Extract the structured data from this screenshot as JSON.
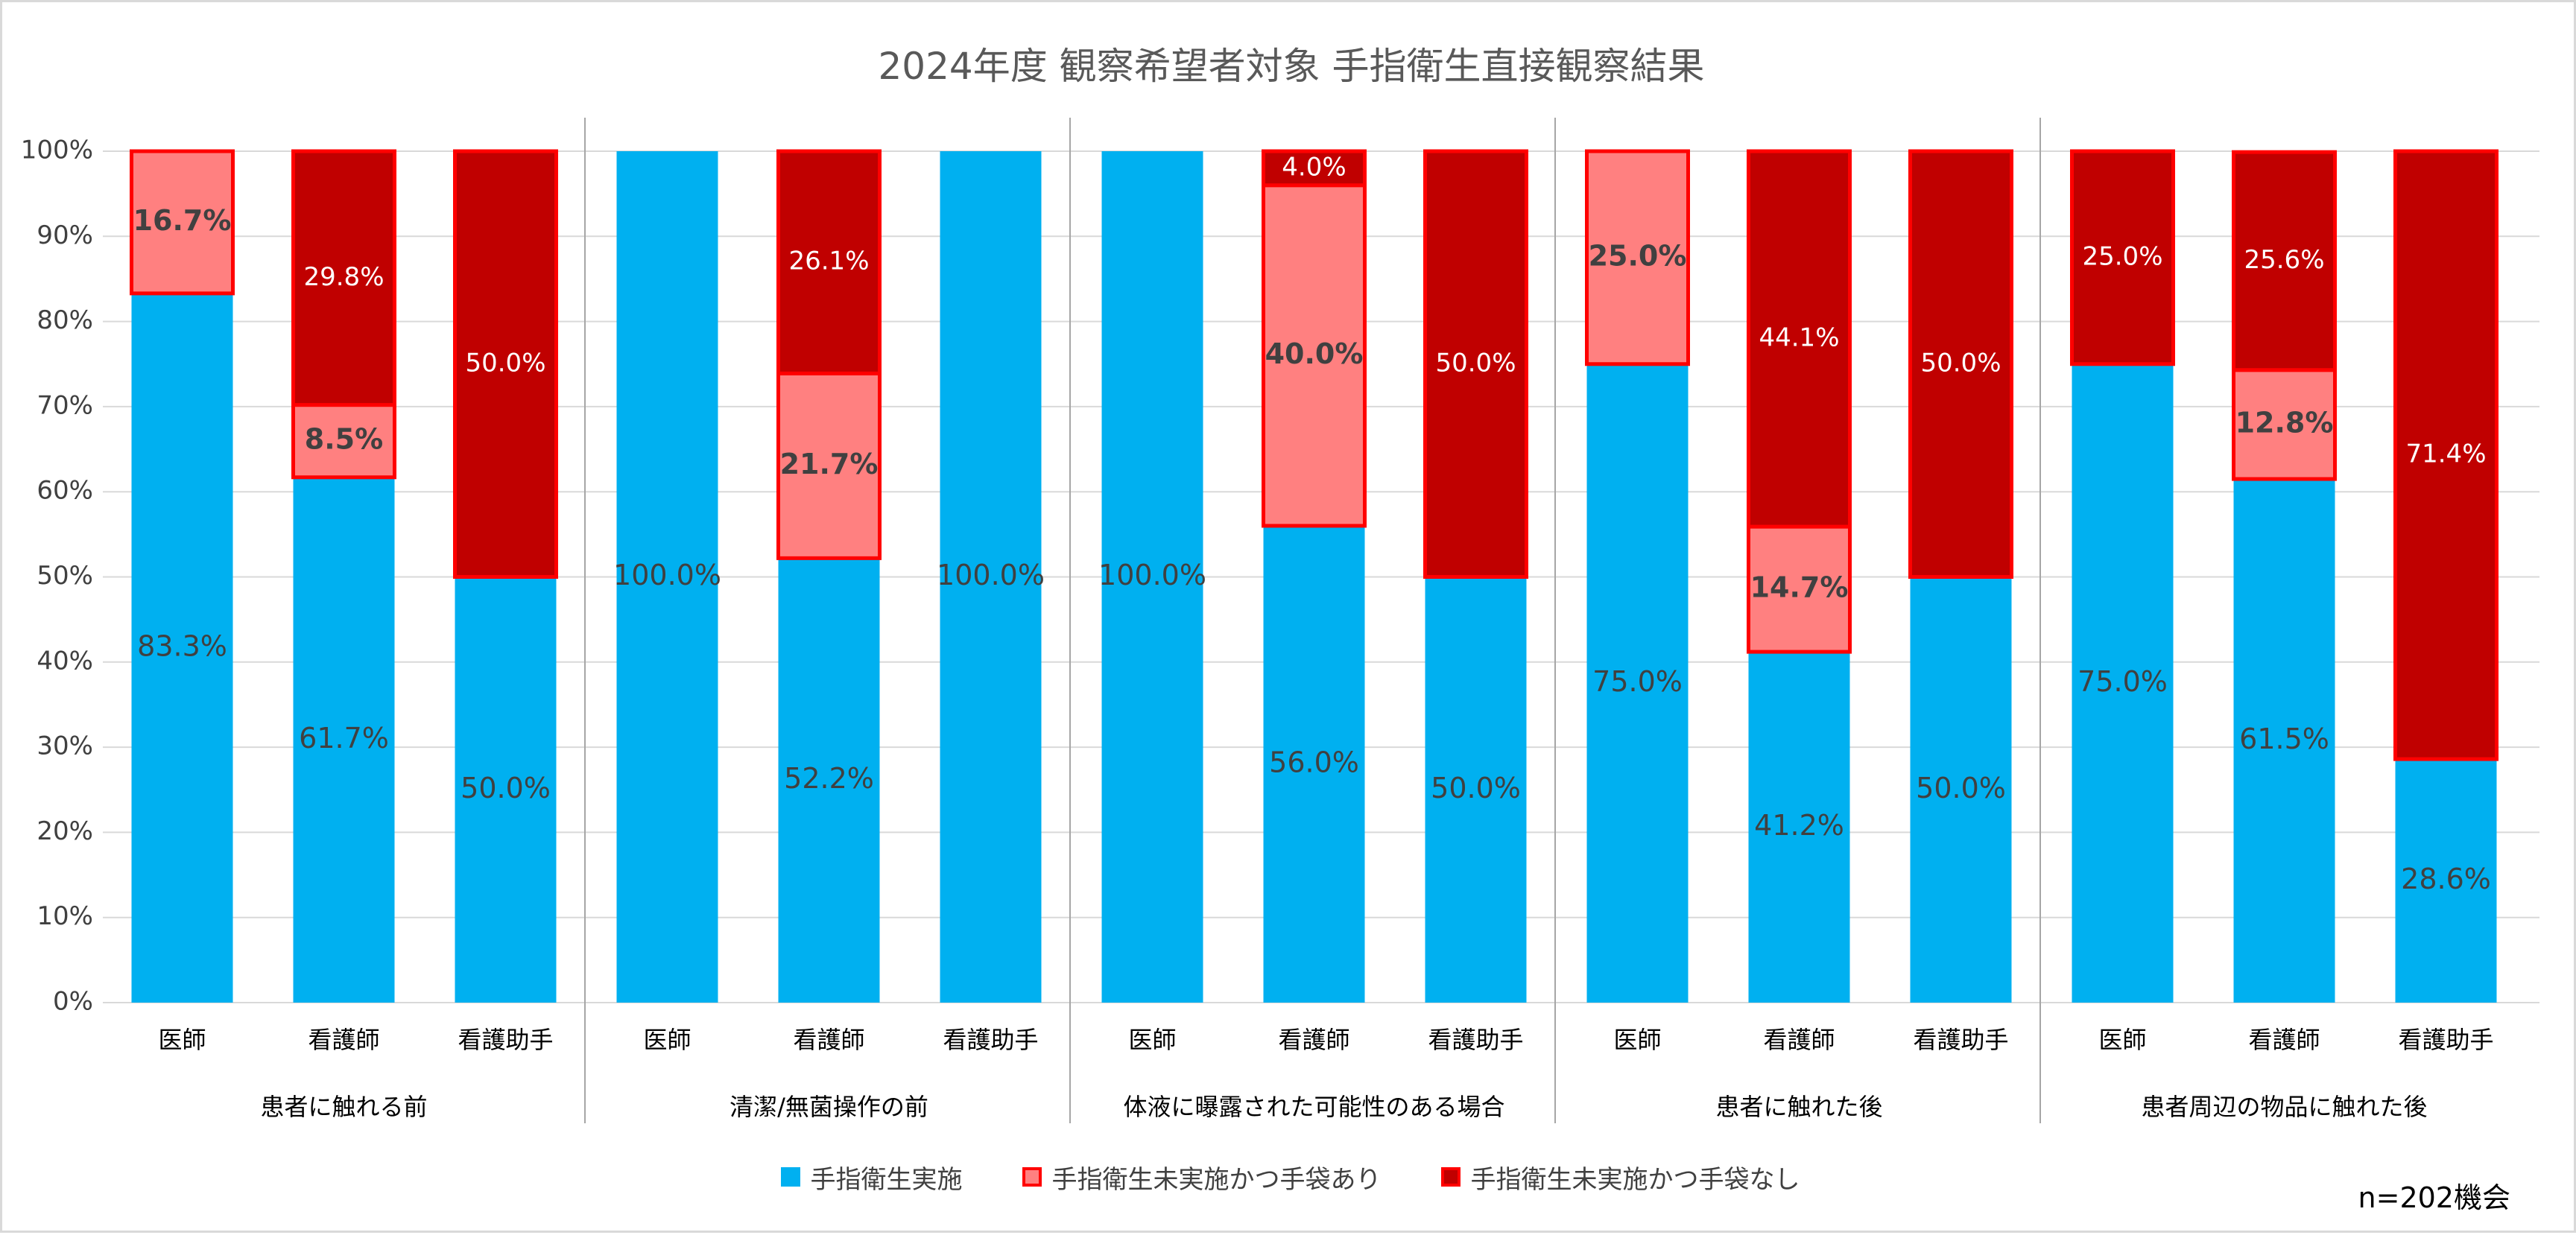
{
  "chart_data": {
    "type": "bar",
    "stacked": true,
    "title": "2024年度 観察希望者対象 手指衛生直接観察結果",
    "xlabel": "",
    "ylabel": "",
    "ylim": [
      0,
      100
    ],
    "y_ticks": [
      "0%",
      "10%",
      "20%",
      "30%",
      "40%",
      "50%",
      "60%",
      "70%",
      "80%",
      "90%",
      "100%"
    ],
    "grid": true,
    "legend_position": "bottom",
    "groups": [
      {
        "name": "患者に触れる前",
        "categories": [
          "医師",
          "看護師",
          "看護助手"
        ]
      },
      {
        "name": "清潔/無菌操作の前",
        "categories": [
          "医師",
          "看護師",
          "看護助手"
        ]
      },
      {
        "name": "体液に曝露された可能性のある場合",
        "categories": [
          "医師",
          "看護師",
          "看護助手"
        ]
      },
      {
        "name": "患者に触れた後",
        "categories": [
          "医師",
          "看護師",
          "看護助手"
        ]
      },
      {
        "name": "患者周辺の物品に触れた後",
        "categories": [
          "医師",
          "看護師",
          "看護助手"
        ]
      }
    ],
    "series": [
      {
        "name": "手指衛生実施",
        "color": "#00b0f0",
        "values": [
          83.3,
          61.7,
          50.0,
          100.0,
          52.2,
          100.0,
          100.0,
          56.0,
          50.0,
          75.0,
          41.2,
          50.0,
          75.0,
          61.5,
          28.6
        ],
        "labels": [
          "83.3%",
          "61.7%",
          "50.0%",
          "100.0%",
          "52.2%",
          "100.0%",
          "100.0%",
          "56.0%",
          "50.0%",
          "75.0%",
          "41.2%",
          "50.0%",
          "75.0%",
          "61.5%",
          "28.6%"
        ]
      },
      {
        "name": "手指衛生未実施かつ手袋あり",
        "color": "#ff8080",
        "values": [
          16.7,
          8.5,
          0,
          0,
          21.7,
          0,
          0,
          40.0,
          0,
          25.0,
          14.7,
          0,
          0,
          12.8,
          0
        ],
        "labels": [
          "16.7%",
          "8.5%",
          "",
          "",
          "21.7%",
          "",
          "",
          "40.0%",
          "",
          "25.0%",
          "14.7%",
          "",
          "",
          "12.8%",
          ""
        ]
      },
      {
        "name": "手指衛生未実施かつ手袋なし",
        "color": "#c00000",
        "values": [
          0,
          29.8,
          50.0,
          0,
          26.1,
          0,
          0,
          4.0,
          50.0,
          0,
          44.1,
          50.0,
          25.0,
          25.6,
          71.4
        ],
        "labels": [
          "",
          "29.8%",
          "50.0%",
          "",
          "26.1%",
          "",
          "",
          "4.0%",
          "50.0%",
          "",
          "44.1%",
          "50.0%",
          "25.0%",
          "25.6%",
          "71.4%"
        ]
      }
    ],
    "legend": [
      "手指衛生実施",
      "手指衛生未実施かつ手袋あり",
      "手指衛生未実施かつ手袋なし"
    ],
    "annotation": "n=202機会"
  },
  "colors": {
    "implemented": "#00b0f0",
    "glove": "#ff8080",
    "no_glove": "#c00000",
    "outline": "#ff0000",
    "grid": "#d9d9d9",
    "separator": "#a6a6a6",
    "text": "#404040"
  }
}
